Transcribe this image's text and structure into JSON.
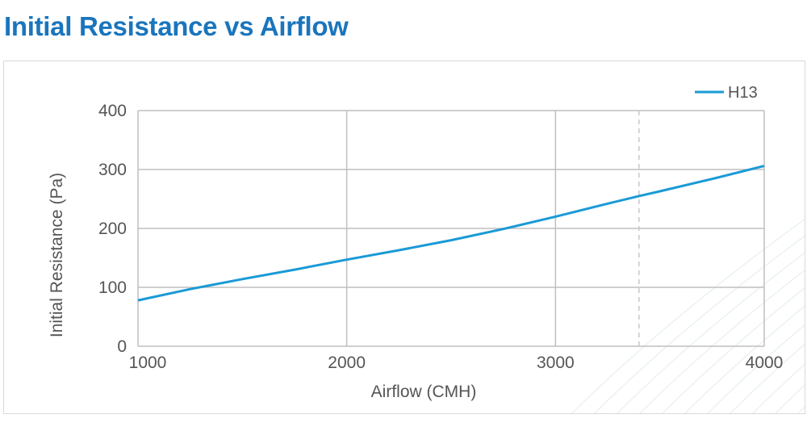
{
  "header": {
    "title": "Initial Resistance vs Airflow"
  },
  "chart_data": {
    "type": "line",
    "xlabel": "Airflow (CMH)",
    "ylabel": "Initial Resistance (Pa)",
    "xlim": [
      1000,
      4000
    ],
    "ylim": [
      0,
      400
    ],
    "xticks": [
      1000,
      2000,
      3000,
      4000
    ],
    "yticks": [
      0,
      100,
      200,
      300,
      400
    ],
    "grid": true,
    "legend_position": "top-right",
    "reference_line_x": 3400,
    "series": [
      {
        "name": "H13",
        "color": "#1a9ad6",
        "x": [
          1000,
          1250,
          1500,
          1750,
          2000,
          2250,
          2500,
          2750,
          3000,
          3250,
          3400,
          3500,
          3750,
          4000
        ],
        "y": [
          78,
          97,
          114,
          130,
          147,
          163,
          180,
          199,
          220,
          242,
          255,
          263,
          284,
          306
        ]
      }
    ]
  }
}
